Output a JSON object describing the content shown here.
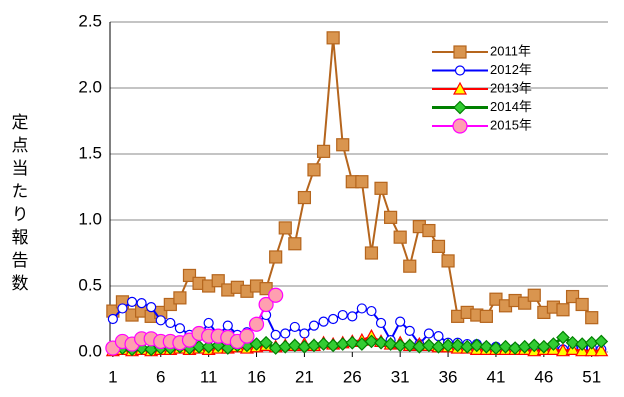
{
  "chart_data": {
    "type": "line",
    "y_label": "定点当たり報告数",
    "x": [
      1,
      2,
      3,
      4,
      5,
      6,
      7,
      8,
      9,
      10,
      11,
      12,
      13,
      14,
      15,
      16,
      17,
      18,
      19,
      20,
      21,
      22,
      23,
      24,
      25,
      26,
      27,
      28,
      29,
      30,
      31,
      32,
      33,
      34,
      35,
      36,
      37,
      38,
      39,
      40,
      41,
      42,
      43,
      44,
      45,
      46,
      47,
      48,
      49,
      50,
      51,
      52
    ],
    "xlim": [
      0.7,
      52.7
    ],
    "xticks": [
      1,
      6,
      11,
      16,
      21,
      26,
      31,
      36,
      41,
      46,
      51
    ],
    "ylim": [
      0,
      2.5
    ],
    "yticks": [
      {
        "value": 0,
        "label": "0.0"
      },
      {
        "value": 0.5,
        "label": "0.5"
      },
      {
        "value": 1,
        "label": "1.0"
      },
      {
        "value": 1.5,
        "label": "1.5"
      },
      {
        "value": 2,
        "label": "2.0"
      },
      {
        "value": 2.5,
        "label": "2.5"
      }
    ],
    "grid": true,
    "legend": "upper right",
    "series": [
      {
        "name": "2011年",
        "color": "#b5651d",
        "marker": "square",
        "marker_fill": "#d9954f",
        "values": [
          0.31,
          0.38,
          0.28,
          0.31,
          0.27,
          0.3,
          0.36,
          0.41,
          0.58,
          0.52,
          0.5,
          0.54,
          0.47,
          0.49,
          0.46,
          0.5,
          0.48,
          0.72,
          0.94,
          0.82,
          1.17,
          1.38,
          1.52,
          2.38,
          1.57,
          1.29,
          1.29,
          0.75,
          1.24,
          1.02,
          0.87,
          0.65,
          0.95,
          0.92,
          0.8,
          0.69,
          0.27,
          0.3,
          0.28,
          0.27,
          0.4,
          0.35,
          0.39,
          0.37,
          0.43,
          0.3,
          0.34,
          0.32,
          0.42,
          0.36,
          0.26,
          null
        ]
      },
      {
        "name": "2012年",
        "color": "#0000ff",
        "marker": "circle",
        "marker_fill": "#ffffff",
        "values": [
          0.25,
          0.33,
          0.38,
          0.37,
          0.34,
          0.24,
          0.22,
          0.18,
          0.13,
          0.12,
          0.22,
          0.13,
          0.2,
          0.13,
          0.15,
          0.21,
          0.28,
          0.13,
          0.14,
          0.19,
          0.14,
          0.2,
          0.23,
          0.25,
          0.28,
          0.27,
          0.33,
          0.31,
          0.22,
          0.09,
          0.23,
          0.16,
          0.06,
          0.14,
          0.12,
          0.07,
          0.07,
          0.06,
          0.06,
          0.04,
          0.04,
          0.03,
          0.03,
          0.03,
          0.03,
          0.03,
          0.03,
          0.02,
          0.03,
          0.03,
          0.03,
          0.02
        ]
      },
      {
        "name": "2013年",
        "color": "#ff0000",
        "marker": "triangle",
        "marker_fill": "#ffff00",
        "values": [
          0.01,
          0.02,
          0.01,
          0.02,
          0.01,
          0.02,
          0.02,
          0.03,
          0.02,
          0.03,
          0.02,
          0.03,
          0.03,
          0.04,
          0.03,
          0.04,
          0.05,
          0.04,
          0.05,
          0.05,
          0.06,
          0.05,
          0.07,
          0.06,
          0.07,
          0.08,
          0.09,
          0.12,
          0.08,
          0.06,
          0.07,
          0.05,
          0.06,
          0.05,
          0.04,
          0.04,
          0.03,
          0.03,
          0.02,
          0.02,
          0.02,
          0.02,
          0.02,
          0.02,
          0.01,
          0.02,
          0.02,
          0.01,
          0.02,
          0.01,
          0.01,
          0.01
        ]
      },
      {
        "name": "2014年",
        "color": "#008000",
        "marker": "diamond",
        "marker_fill": "#33cc33",
        "values": [
          0.03,
          0.03,
          0.02,
          0.03,
          0.02,
          0.03,
          0.03,
          0.04,
          0.03,
          0.04,
          0.04,
          0.05,
          0.03,
          0.05,
          0.05,
          0.06,
          0.07,
          0.03,
          0.04,
          0.05,
          0.04,
          0.05,
          0.06,
          0.05,
          0.06,
          0.07,
          0.06,
          0.08,
          0.07,
          0.06,
          0.05,
          0.05,
          0.04,
          0.05,
          0.04,
          0.05,
          0.05,
          0.04,
          0.05,
          0.04,
          0.03,
          0.04,
          0.03,
          0.04,
          0.05,
          0.04,
          0.06,
          0.11,
          0.07,
          0.06,
          0.07,
          0.08
        ]
      },
      {
        "name": "2015年",
        "color": "#ff00ff",
        "marker": "circle",
        "marker_fill": "#ff9fb0",
        "values": [
          0.03,
          0.08,
          0.06,
          0.1,
          0.1,
          0.08,
          0.08,
          0.07,
          0.09,
          0.14,
          0.12,
          0.12,
          0.11,
          0.08,
          0.12,
          0.21,
          0.36,
          0.43,
          null,
          null,
          null,
          null,
          null,
          null,
          null,
          null,
          null,
          null,
          null,
          null,
          null,
          null,
          null,
          null,
          null,
          null,
          null,
          null,
          null,
          null,
          null,
          null,
          null,
          null,
          null,
          null,
          null,
          null,
          null,
          null,
          null,
          null
        ]
      }
    ]
  }
}
